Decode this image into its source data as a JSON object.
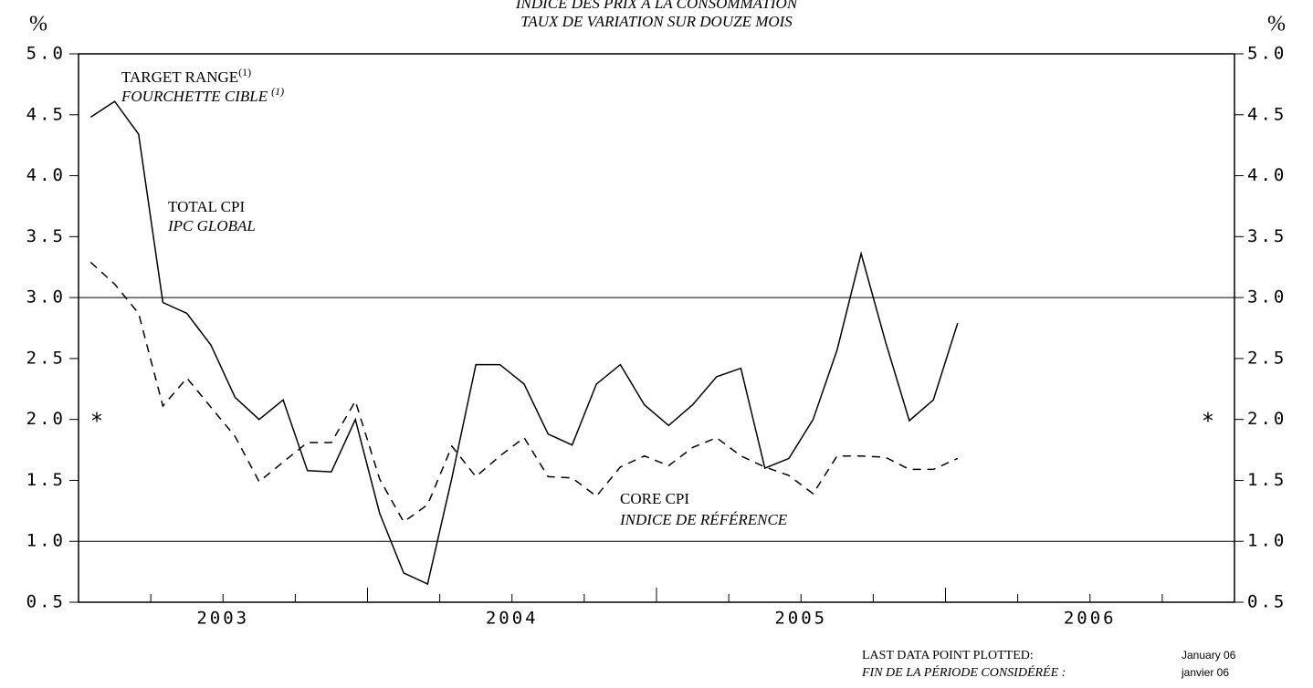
{
  "chart_data": {
    "type": "line",
    "title": "INDICE DES PRIX À LA CONSOMMATION",
    "subtitle": "TAUX DE VARIATION SUR DOUZE MOIS",
    "y_unit": "%",
    "xlim": [
      2003,
      2007
    ],
    "xticks": [
      2003,
      2004,
      2005,
      2006
    ],
    "ylim": [
      0.5,
      5.0
    ],
    "yticks": [
      0.5,
      {
        "value": 1,
        "label": "1.0"
      },
      1.5,
      {
        "value": 2,
        "label": "2.0"
      },
      2.5,
      {
        "value": 3,
        "label": "3.0"
      },
      3.5,
      {
        "value": 4,
        "label": "4.0"
      },
      4.5,
      {
        "value": 5,
        "label": "5.0"
      }
    ],
    "x": [
      2003.042,
      2003.125,
      2003.208,
      2003.292,
      2003.375,
      2003.458,
      2003.542,
      2003.625,
      2003.708,
      2003.792,
      2003.875,
      2003.958,
      2004.042,
      2004.125,
      2004.208,
      2004.292,
      2004.375,
      2004.458,
      2004.542,
      2004.625,
      2004.708,
      2004.792,
      2004.875,
      2004.958,
      2005.042,
      2005.125,
      2005.208,
      2005.292,
      2005.375,
      2005.458,
      2005.542,
      2005.625,
      2005.708,
      2005.792,
      2005.875,
      2005.958,
      2006.042
    ],
    "series": [
      {
        "name": "TOTAL CPI",
        "name_fr": "IPC GLOBAL",
        "color": "#000000",
        "dashed": false,
        "values": [
          4.48,
          4.61,
          4.34,
          2.96,
          2.87,
          2.61,
          2.18,
          2.0,
          2.16,
          1.58,
          1.57,
          2.0,
          1.23,
          0.74,
          0.65,
          1.52,
          2.45,
          2.45,
          2.29,
          1.88,
          1.79,
          2.29,
          2.45,
          2.12,
          1.95,
          2.12,
          2.35,
          2.42,
          1.6,
          1.68,
          2.0,
          2.57,
          3.36,
          2.64,
          1.99,
          2.16,
          2.79
        ]
      },
      {
        "name": "CORE CPI",
        "name_fr": "INDICE DE RÉFÉRENCE",
        "color": "#000000",
        "dashed": true,
        "values": [
          3.29,
          3.11,
          2.87,
          2.11,
          2.34,
          2.1,
          1.86,
          1.49,
          1.65,
          1.81,
          1.81,
          2.15,
          1.51,
          1.16,
          1.3,
          1.78,
          1.53,
          1.7,
          1.85,
          1.53,
          1.52,
          1.37,
          1.61,
          1.7,
          1.62,
          1.77,
          1.85,
          1.7,
          1.61,
          1.54,
          1.39,
          1.7,
          1.7,
          1.69,
          1.59,
          1.59,
          1.68
        ]
      }
    ],
    "target_range": {
      "label": "TARGET RANGE",
      "label_fr": "FOURCHETTE CIBLE",
      "footnote": "(1)",
      "values": [
        1,
        3
      ]
    },
    "target_midpoint": {
      "label": "*",
      "value": 2
    },
    "last_point": {
      "label": "LAST DATA POINT PLOTTED:",
      "value": "January 06",
      "label_fr": "FIN DE LA PÉRIODE CONSIDÉRÉE :",
      "value_fr": "janvier 06"
    }
  }
}
